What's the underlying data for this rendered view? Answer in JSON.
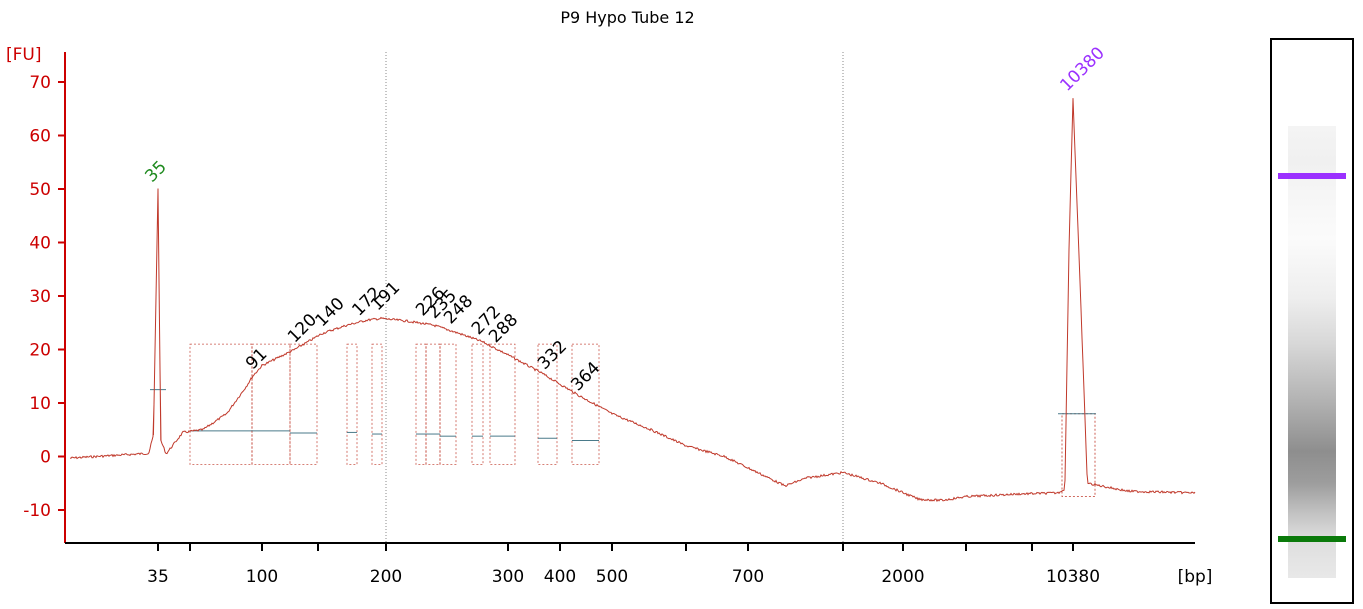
{
  "title": "P9 Hypo Tube 12",
  "colors": {
    "trace": "#c0392b",
    "axis": "#cc0000",
    "lower_marker": "#1e8a1e",
    "upper_marker": "#9b30ff",
    "peak_label": "#000000",
    "baseline": "#4a7a8a",
    "gel_upper_band": "#9b30ff",
    "gel_lower_band": "#0a7a0a"
  },
  "chart_data": {
    "type": "line",
    "title": "P9 Hypo Tube 12",
    "y_unit": "[FU]",
    "x_unit": "[bp]",
    "ylim": [
      -16,
      76
    ],
    "yticks": [
      -10,
      0,
      10,
      20,
      30,
      40,
      50,
      60,
      70
    ],
    "xticks": [
      {
        "label": "35"
      },
      {
        "label": ""
      },
      {
        "label": "100"
      },
      {
        "label": ""
      },
      {
        "label": "200"
      },
      {
        "label": "300"
      },
      {
        "label": "400"
      },
      {
        "label": "500"
      },
      {
        "label": ""
      },
      {
        "label": "700"
      },
      {
        "label": ""
      },
      {
        "label": "2000"
      },
      {
        "label": ""
      },
      {
        "label": ""
      },
      {
        "label": "10380"
      }
    ],
    "reference_lines_bp": [
      "200",
      "1000"
    ],
    "markers": [
      {
        "label": "35",
        "bp": 35,
        "height": 50
      },
      {
        "label": "10380",
        "bp": 10380,
        "height": 67
      }
    ],
    "peaks": [
      {
        "label": "91",
        "bp": 91,
        "height": 15
      },
      {
        "label": "120",
        "bp": 120,
        "height": 20
      },
      {
        "label": "140",
        "bp": 140,
        "height": 23
      },
      {
        "label": "172",
        "bp": 172,
        "height": 25
      },
      {
        "label": "191",
        "bp": 191,
        "height": 26
      },
      {
        "label": "226",
        "bp": 226,
        "height": 25
      },
      {
        "label": "235",
        "bp": 235,
        "height": 24.5
      },
      {
        "label": "248",
        "bp": 248,
        "height": 23.5
      },
      {
        "label": "272",
        "bp": 272,
        "height": 21.5
      },
      {
        "label": "288",
        "bp": 288,
        "height": 20
      },
      {
        "label": "332",
        "bp": 332,
        "height": 15
      },
      {
        "label": "364",
        "bp": 364,
        "height": 11
      }
    ],
    "trace_profile": [
      {
        "bp": 20,
        "fu": -0.3
      },
      {
        "bp": 33,
        "fu": 0.6
      },
      {
        "bp": 34,
        "fu": 4
      },
      {
        "bp": 35,
        "fu": 50
      },
      {
        "bp": 36,
        "fu": 3
      },
      {
        "bp": 38,
        "fu": 0.5
      },
      {
        "bp": 45,
        "fu": 4.5
      },
      {
        "bp": 55,
        "fu": 5
      },
      {
        "bp": 70,
        "fu": 8
      },
      {
        "bp": 85,
        "fu": 13
      },
      {
        "bp": 91,
        "fu": 15
      },
      {
        "bp": 100,
        "fu": 17
      },
      {
        "bp": 120,
        "fu": 20
      },
      {
        "bp": 140,
        "fu": 23
      },
      {
        "bp": 160,
        "fu": 24.5
      },
      {
        "bp": 180,
        "fu": 25.5
      },
      {
        "bp": 195,
        "fu": 25.8
      },
      {
        "bp": 215,
        "fu": 25.3
      },
      {
        "bp": 235,
        "fu": 24.5
      },
      {
        "bp": 255,
        "fu": 23
      },
      {
        "bp": 275,
        "fu": 21.5
      },
      {
        "bp": 300,
        "fu": 19
      },
      {
        "bp": 330,
        "fu": 15.5
      },
      {
        "bp": 364,
        "fu": 11.5
      },
      {
        "bp": 400,
        "fu": 8
      },
      {
        "bp": 450,
        "fu": 5
      },
      {
        "bp": 500,
        "fu": 2
      },
      {
        "bp": 570,
        "fu": 0
      },
      {
        "bp": 650,
        "fu": -3.5
      },
      {
        "bp": 700,
        "fu": -5.5
      },
      {
        "bp": 800,
        "fu": -4
      },
      {
        "bp": 1000,
        "fu": -3
      },
      {
        "bp": 1300,
        "fu": -5
      },
      {
        "bp": 1700,
        "fu": -8
      },
      {
        "bp": 2000,
        "fu": -8.2
      },
      {
        "bp": 3000,
        "fu": -7.5
      },
      {
        "bp": 6000,
        "fu": -7
      },
      {
        "bp": 9000,
        "fu": -6.8
      },
      {
        "bp": 9600,
        "fu": -6
      },
      {
        "bp": 10000,
        "fu": 40
      },
      {
        "bp": 10380,
        "fu": 67
      },
      {
        "bp": 10700,
        "fu": 30
      },
      {
        "bp": 11000,
        "fu": -5
      },
      {
        "bp": 13000,
        "fu": -6.5
      },
      {
        "bp": 17000,
        "fu": -6.8
      }
    ]
  }
}
